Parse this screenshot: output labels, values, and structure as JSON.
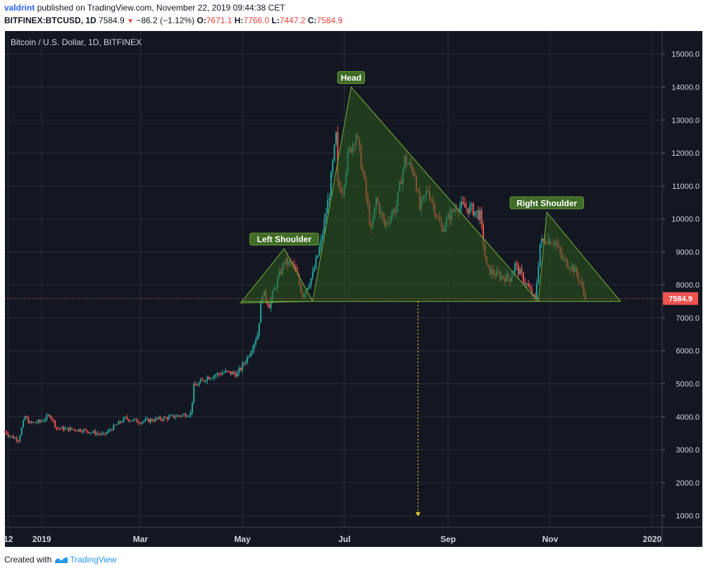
{
  "header": {
    "author": "valdrint",
    "published_text": "published on TradingView.com, November 22, 2019 09:44:38 CET",
    "symbol": "BITFINEX:BTCUSD, 1D",
    "last": "7584.9",
    "change": "−86.2 (−1.12%)",
    "o_label": "O:",
    "o_value": "7671.1",
    "h_label": "H:",
    "h_value": "7766.0",
    "l_label": "L:",
    "l_value": "7447.2",
    "c_label": "C:",
    "c_value": "7584.9"
  },
  "footer": {
    "created_with": "Created with",
    "brand": "TradingView"
  },
  "colors": {
    "background": "#131722",
    "grid": "#2a2e39",
    "up": "#26a69a",
    "down": "#ef5350",
    "pattern_fill": "#2e5a1c",
    "pattern_stroke": "#6b9a3a",
    "label_bg": "#3e6b26",
    "price_line": "#ef5350",
    "target_arrow": "#e8d23a"
  },
  "chart_data": {
    "type": "candlestick",
    "title": "Bitcoin / U.S. Dollar, 1D, BITFINEX",
    "y_ticks": [
      1000.0,
      2000.0,
      3000.0,
      4000.0,
      5000.0,
      6000.0,
      7000.0,
      8000.0,
      9000.0,
      10000.0,
      11000.0,
      12000.0,
      13000.0,
      14000.0,
      15000.0
    ],
    "y_tick_labels": [
      "1000.0",
      "2000.0",
      "3000.0",
      "4000.0",
      "5000.0",
      "6000.0",
      "7000.0",
      "8000.0",
      "9000.0",
      "10000.0",
      "11000.0",
      "12000.0",
      "13000.0",
      "14000.0",
      "15000.0"
    ],
    "ylim": [
      650,
      15700
    ],
    "x_range": [
      "2018-12-10",
      "2020-01-07"
    ],
    "x_ticks": [
      {
        "date": "2018-12-12",
        "label": "12"
      },
      {
        "date": "2019-01-01",
        "label": "2019"
      },
      {
        "date": "2019-03-01",
        "label": "Mar"
      },
      {
        "date": "2019-05-01",
        "label": "May"
      },
      {
        "date": "2019-07-01",
        "label": "Jul"
      },
      {
        "date": "2019-09-01",
        "label": "Sep"
      },
      {
        "date": "2019-11-01",
        "label": "Nov"
      },
      {
        "date": "2020-01-01",
        "label": "2020"
      }
    ],
    "price_anchors": [
      [
        "2018-12-10",
        3550
      ],
      [
        "2018-12-12",
        3450
      ],
      [
        "2018-12-18",
        3300
      ],
      [
        "2018-12-22",
        4000
      ],
      [
        "2018-12-25",
        3800
      ],
      [
        "2018-12-31",
        3850
      ],
      [
        "2019-01-06",
        4050
      ],
      [
        "2019-01-10",
        3650
      ],
      [
        "2019-01-25",
        3600
      ],
      [
        "2019-02-07",
        3450
      ],
      [
        "2019-02-12",
        3650
      ],
      [
        "2019-02-20",
        3950
      ],
      [
        "2019-02-28",
        3850
      ],
      [
        "2019-03-15",
        3950
      ],
      [
        "2019-03-31",
        4100
      ],
      [
        "2019-04-02",
        4900
      ],
      [
        "2019-04-10",
        5200
      ],
      [
        "2019-04-20",
        5350
      ],
      [
        "2019-04-28",
        5300
      ],
      [
        "2019-05-04",
        5800
      ],
      [
        "2019-05-10",
        6500
      ],
      [
        "2019-05-13",
        7800
      ],
      [
        "2019-05-17",
        7400
      ],
      [
        "2019-05-21",
        8000
      ],
      [
        "2019-05-26",
        8700
      ],
      [
        "2019-05-31",
        8600
      ],
      [
        "2019-06-03",
        8200
      ],
      [
        "2019-06-06",
        7700
      ],
      [
        "2019-06-12",
        8300
      ],
      [
        "2019-06-17",
        9300
      ],
      [
        "2019-06-22",
        10800
      ],
      [
        "2019-06-26",
        12500
      ],
      [
        "2019-06-27",
        11000
      ],
      [
        "2019-06-30",
        10900
      ],
      [
        "2019-07-03",
        11900
      ],
      [
        "2019-07-08",
        12600
      ],
      [
        "2019-07-12",
        11400
      ],
      [
        "2019-07-17",
        9600
      ],
      [
        "2019-07-20",
        10600
      ],
      [
        "2019-07-25",
        9800
      ],
      [
        "2019-08-01",
        10400
      ],
      [
        "2019-08-06",
        11800
      ],
      [
        "2019-08-12",
        11400
      ],
      [
        "2019-08-15",
        10300
      ],
      [
        "2019-08-20",
        10900
      ],
      [
        "2019-08-28",
        9700
      ],
      [
        "2019-09-06",
        10400
      ],
      [
        "2019-09-15",
        10300
      ],
      [
        "2019-09-20",
        10100
      ],
      [
        "2019-09-24",
        8500
      ],
      [
        "2019-09-30",
        8300
      ],
      [
        "2019-10-08",
        8200
      ],
      [
        "2019-10-11",
        8600
      ],
      [
        "2019-10-18",
        8000
      ],
      [
        "2019-10-23",
        7500
      ],
      [
        "2019-10-26",
        9250
      ],
      [
        "2019-10-30",
        9400
      ],
      [
        "2019-11-04",
        9300
      ],
      [
        "2019-11-08",
        8800
      ],
      [
        "2019-11-15",
        8500
      ],
      [
        "2019-11-19",
        8100
      ],
      [
        "2019-11-22",
        7584.9
      ]
    ],
    "current_price": 7584.9,
    "current_price_label": "7584.9",
    "annotations": [
      {
        "label": "Left Shoulder",
        "points": [
          [
            "2019-04-30",
            7450
          ],
          [
            "2019-05-26",
            9100
          ],
          [
            "2019-06-12",
            7500
          ]
        ]
      },
      {
        "label": "Head",
        "points": [
          [
            "2019-06-12",
            7500
          ],
          [
            "2019-07-05",
            14000
          ],
          [
            "2019-10-25",
            7500
          ]
        ]
      },
      {
        "label": "Right Shoulder",
        "points": [
          [
            "2019-10-25",
            7500
          ],
          [
            "2019-10-30",
            10200
          ],
          [
            "2019-12-13",
            7500
          ]
        ]
      }
    ],
    "neckline": [
      [
        "2019-04-30",
        7500
      ],
      [
        "2019-12-13",
        7500
      ]
    ],
    "target_arrow": [
      [
        "2019-08-14",
        7500
      ],
      [
        "2019-08-14",
        1000
      ]
    ]
  }
}
